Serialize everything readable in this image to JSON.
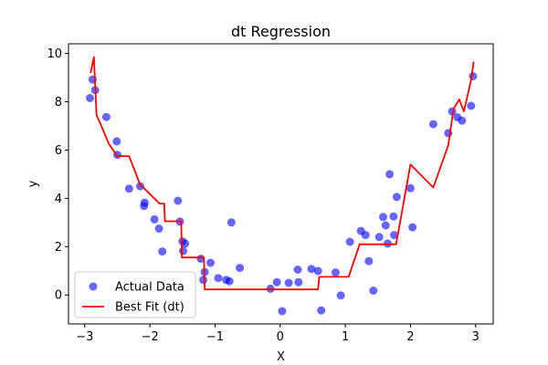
{
  "chart_data": {
    "type": "scatter",
    "title": "dt Regression",
    "xlabel": "X",
    "ylabel": "y",
    "xlim": [
      -3.25,
      3.27
    ],
    "ylim": [
      -1.2,
      10.4
    ],
    "xticks": [
      -3,
      -2,
      -1,
      0,
      1,
      2,
      3
    ],
    "yticks": [
      0,
      2,
      4,
      6,
      8,
      10
    ],
    "grid": false,
    "legend_position": "lower-left",
    "colors": {
      "scatter": "#0000ff",
      "line": "#ff0000"
    },
    "series": [
      {
        "name": "Actual Data",
        "kind": "scatter",
        "points": [
          [
            -2.92,
            8.15
          ],
          [
            -2.88,
            8.92
          ],
          [
            -2.84,
            8.48
          ],
          [
            -2.67,
            7.37
          ],
          [
            -2.51,
            6.36
          ],
          [
            -2.5,
            5.8
          ],
          [
            -2.32,
            4.4
          ],
          [
            -2.15,
            4.5
          ],
          [
            -2.09,
            3.68
          ],
          [
            -2.08,
            3.82
          ],
          [
            -1.93,
            3.13
          ],
          [
            -1.86,
            2.75
          ],
          [
            -1.81,
            1.8
          ],
          [
            -1.57,
            3.9
          ],
          [
            -1.54,
            3.04
          ],
          [
            -1.5,
            2.22
          ],
          [
            -1.49,
            1.82
          ],
          [
            -1.46,
            2.13
          ],
          [
            -1.22,
            1.5
          ],
          [
            -1.18,
            0.62
          ],
          [
            -1.16,
            0.95
          ],
          [
            -1.07,
            1.33
          ],
          [
            -0.95,
            0.7
          ],
          [
            -0.83,
            0.62
          ],
          [
            -0.78,
            0.57
          ],
          [
            -0.75,
            3.0
          ],
          [
            -0.62,
            1.12
          ],
          [
            -0.15,
            0.26
          ],
          [
            -0.05,
            0.53
          ],
          [
            0.03,
            -0.67
          ],
          [
            0.13,
            0.5
          ],
          [
            0.27,
            1.05
          ],
          [
            0.28,
            0.53
          ],
          [
            0.48,
            1.08
          ],
          [
            0.58,
            0.99
          ],
          [
            0.63,
            -0.64
          ],
          [
            0.85,
            0.93
          ],
          [
            0.93,
            -0.02
          ],
          [
            1.07,
            2.2
          ],
          [
            1.24,
            2.65
          ],
          [
            1.31,
            2.48
          ],
          [
            1.36,
            1.4
          ],
          [
            1.43,
            0.18
          ],
          [
            1.52,
            2.4
          ],
          [
            1.58,
            3.23
          ],
          [
            1.62,
            2.88
          ],
          [
            1.65,
            2.13
          ],
          [
            1.68,
            5.0
          ],
          [
            1.74,
            3.25
          ],
          [
            1.75,
            2.48
          ],
          [
            1.79,
            4.06
          ],
          [
            2.0,
            4.42
          ],
          [
            2.03,
            2.8
          ],
          [
            2.35,
            7.07
          ],
          [
            2.58,
            6.7
          ],
          [
            2.64,
            7.6
          ],
          [
            2.72,
            7.36
          ],
          [
            2.79,
            7.22
          ],
          [
            2.93,
            7.83
          ],
          [
            2.96,
            9.06
          ]
        ]
      },
      {
        "name": "Best Fit (dt)",
        "kind": "line",
        "points": [
          [
            -2.91,
            9.2
          ],
          [
            -2.86,
            9.85
          ],
          [
            -2.82,
            7.45
          ],
          [
            -2.73,
            6.9
          ],
          [
            -2.63,
            6.25
          ],
          [
            -2.5,
            5.75
          ],
          [
            -2.32,
            5.75
          ],
          [
            -2.22,
            5.05
          ],
          [
            -2.15,
            4.55
          ],
          [
            -2.1,
            4.45
          ],
          [
            -1.85,
            3.78
          ],
          [
            -1.78,
            3.78
          ],
          [
            -1.77,
            3.05
          ],
          [
            -1.57,
            3.05
          ],
          [
            -1.52,
            3.05
          ],
          [
            -1.51,
            1.55
          ],
          [
            -1.2,
            1.55
          ],
          [
            -1.17,
            1.55
          ],
          [
            -1.16,
            0.23
          ],
          [
            -0.8,
            0.23
          ],
          [
            0.5,
            0.23
          ],
          [
            0.58,
            0.23
          ],
          [
            0.6,
            0.75
          ],
          [
            1.05,
            0.75
          ],
          [
            1.22,
            2.1
          ],
          [
            1.78,
            2.1
          ],
          [
            2.0,
            5.4
          ],
          [
            2.35,
            4.45
          ],
          [
            2.58,
            6.2
          ],
          [
            2.66,
            7.7
          ],
          [
            2.75,
            8.1
          ],
          [
            2.82,
            7.6
          ],
          [
            2.88,
            8.3
          ],
          [
            2.93,
            8.9
          ],
          [
            2.97,
            9.65
          ]
        ]
      }
    ]
  }
}
